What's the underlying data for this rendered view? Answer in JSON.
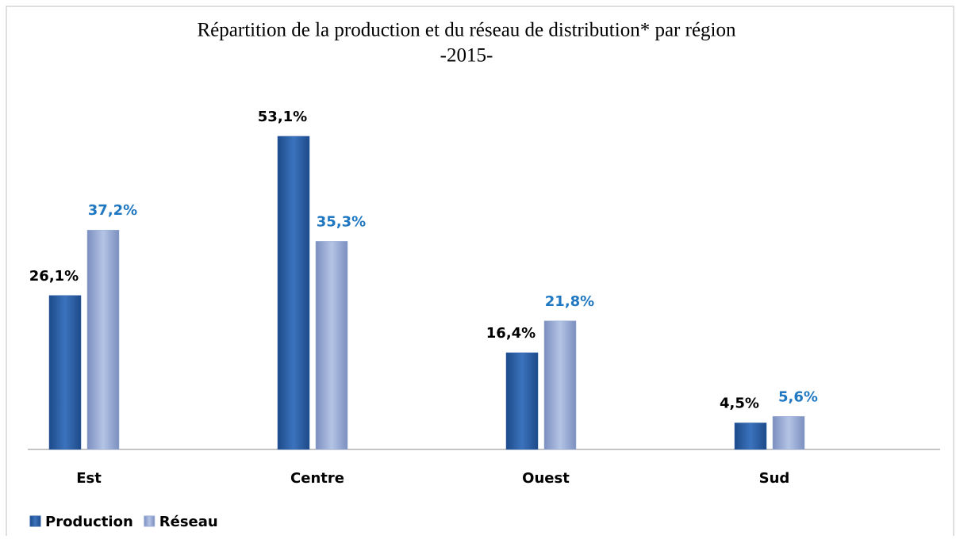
{
  "chart_data": {
    "type": "bar",
    "title": "Répartition de la production et du réseau de distribution* par  région",
    "subtitle": "-2015-",
    "categories": [
      "Est",
      "Centre",
      "Ouest",
      "Sud"
    ],
    "series": [
      {
        "name": "Production",
        "color": "#2f62a8",
        "values": [
          26.1,
          53.1,
          16.4,
          4.5
        ],
        "value_labels": [
          "26,1%",
          "53,1%",
          "16,4%",
          "4,5%"
        ],
        "label_color": "#000000"
      },
      {
        "name": "Réseau",
        "color": "#9aaed6",
        "values": [
          37.2,
          35.3,
          21.8,
          5.6
        ],
        "value_labels": [
          "37,2%",
          "35,3%",
          "21,8%",
          "5,6%"
        ],
        "label_color": "#1f78c1"
      }
    ],
    "legend": "bottom-left"
  }
}
